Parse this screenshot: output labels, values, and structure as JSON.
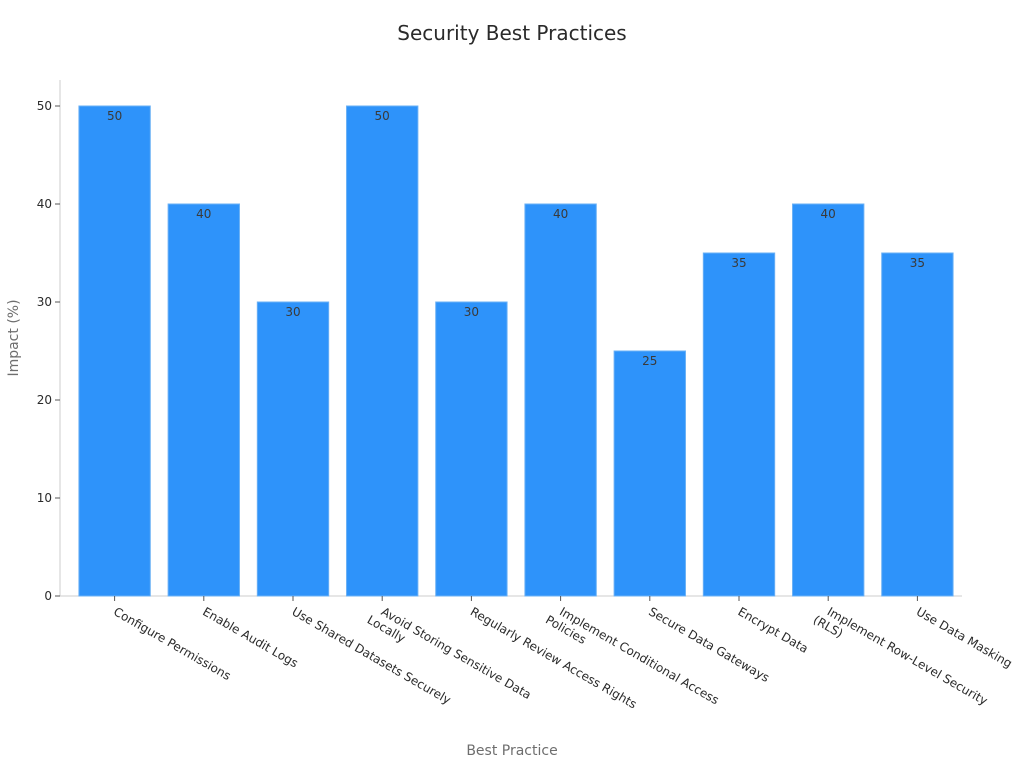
{
  "chart_data": {
    "type": "bar",
    "title": "Security Best Practices",
    "xlabel": "Best Practice",
    "ylabel": "Impact (%)",
    "categories": [
      "Configure Permissions",
      "Enable Audit Logs",
      "Use Shared Datasets Securely",
      "Avoid Storing Sensitive Data Locally",
      "Regularly Review Access Rights",
      "Implement Conditional Access Policies",
      "Secure Data Gateways",
      "Encrypt Data",
      "Implement Row-Level Security (RLS)",
      "Use Data Masking"
    ],
    "values": [
      50,
      40,
      30,
      50,
      30,
      40,
      25,
      35,
      40,
      35
    ],
    "data_labels": [
      "50",
      "40",
      "30",
      "50",
      "30",
      "40",
      "25",
      "35",
      "40",
      "35"
    ],
    "yticks": [
      0,
      10,
      20,
      30,
      40,
      50
    ],
    "ylim": [
      0,
      52.5
    ],
    "grid": false,
    "legend": "none",
    "bar_color": "#2E93FA",
    "bar_edge_color": "#6AB0F5"
  }
}
